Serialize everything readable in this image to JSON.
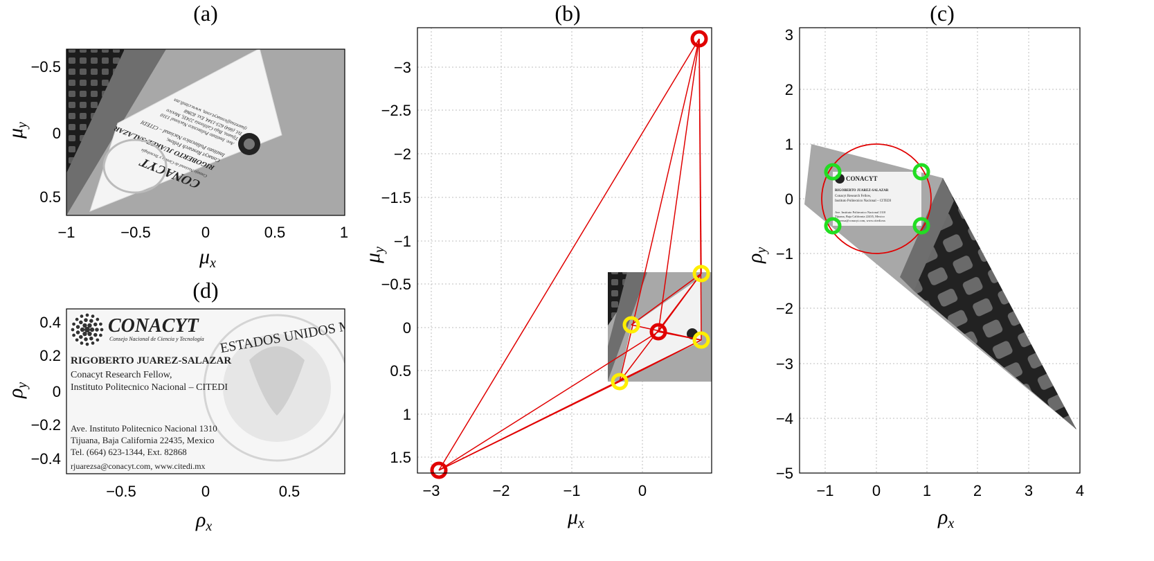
{
  "panels": {
    "a": {
      "title": "(a)",
      "xlabel": "μ",
      "xlabel_sub": "x",
      "ylabel": "μ",
      "ylabel_sub": "y",
      "xticks": [
        "−1",
        "−0.5",
        "0",
        "0.5",
        "1"
      ],
      "yticks": [
        "−0.5",
        "0",
        "0.5"
      ],
      "card": {
        "org": "CONACYT",
        "org_sub": "Consejo Nacional de Ciencia y Tecnología",
        "name": "RIGOBERTO JUAREZ-SALAZAR",
        "line1": "Conacyt Research Fellow,",
        "line2": "Instituto Politecnico Nacional – CITEDI",
        "addr1": "Ave. Instituto Politecnico Nacional 1310",
        "addr2": "Tijuana, Baja California 22435, Mexico",
        "tel": "Tel. (664) 623-1344, Ext. 82868",
        "web": "rjuarezsa@conacyt.com, www.citedi.mx"
      }
    },
    "b": {
      "title": "(b)",
      "xlabel": "μ",
      "xlabel_sub": "x",
      "ylabel": "μ",
      "ylabel_sub": "y",
      "xticks": [
        "−3",
        "−2",
        "−1",
        "0"
      ],
      "yticks": [
        "−3",
        "−2.5",
        "−2",
        "−1.5",
        "−1",
        "−0.5",
        "0",
        "0.5",
        "1",
        "1.5"
      ]
    },
    "c": {
      "title": "(c)",
      "xlabel": "ρ",
      "xlabel_sub": "x",
      "ylabel": "ρ",
      "ylabel_sub": "y",
      "xticks": [
        "−1",
        "0",
        "1",
        "2",
        "3",
        "4"
      ],
      "yticks": [
        "3",
        "2",
        "1",
        "0",
        "−1",
        "−2",
        "−3",
        "−4",
        "−5"
      ]
    },
    "d": {
      "title": "(d)",
      "xlabel": "ρ",
      "xlabel_sub": "x",
      "ylabel": "ρ",
      "ylabel_sub": "y",
      "xticks": [
        "−0.5",
        "0",
        "0.5"
      ],
      "yticks": [
        "0.4",
        "0.2",
        "0",
        "−0.2",
        "−0.4"
      ],
      "card": {
        "org": "CONACYT",
        "org_sub": "Consejo Nacional de Ciencia y Tecnología",
        "seal_text": "ESTADOS UNIDOS MEXICANOS",
        "name": "RIGOBERTO JUAREZ-SALAZAR",
        "line1": "Conacyt Research Fellow,",
        "line2": "Instituto Politecnico Nacional – CITEDI",
        "addr1": "Ave. Instituto Politecnico Nacional 1310",
        "addr2": "Tijuana, Baja California 22435, Mexico",
        "tel": "Tel. (664) 623-1344, Ext. 82868",
        "web": "rjuarezsa@conacyt.com, www.citedi.mx"
      }
    }
  },
  "colors": {
    "marker_red": "#e00000",
    "marker_yellow": "#ffee00",
    "marker_green": "#22dd22",
    "line_red": "#e00000",
    "photo_gray": "#a8a8a8"
  }
}
